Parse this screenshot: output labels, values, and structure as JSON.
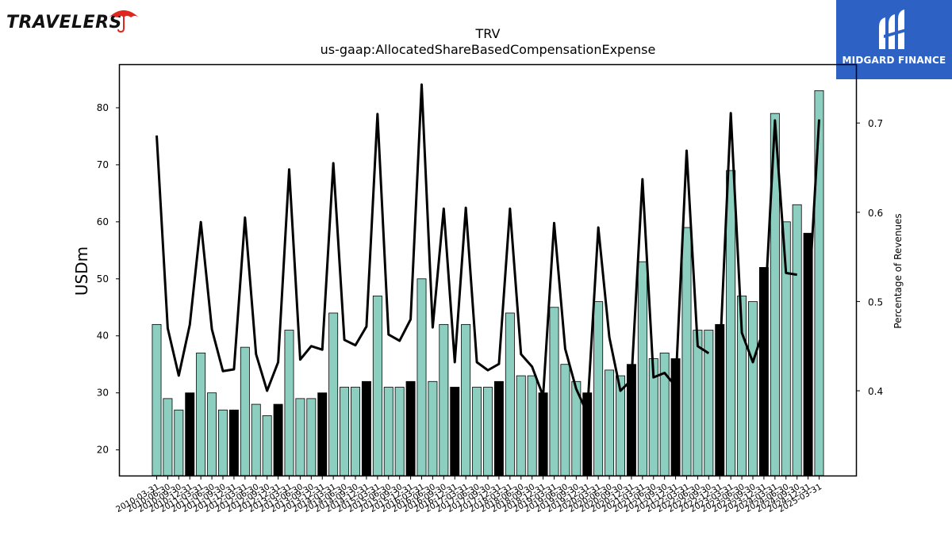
{
  "branding": {
    "company_logo_text": "TRAVELERS",
    "partner_name": "MIDGARD FINANCE",
    "colors": {
      "umbrella": "#e0261f",
      "badge": "#2d62c4"
    }
  },
  "chart_data": {
    "type": "bar",
    "title": "TRV",
    "subtitle": "us-gaap:AllocatedShareBasedCompensationExpense",
    "ylabel": "USDm",
    "y2label": "Percentage of Revenues",
    "ylim": [
      15.5,
      87.5
    ],
    "y2lim": [
      0.305,
      0.765
    ],
    "yticks": [
      20,
      30,
      40,
      50,
      60,
      70,
      80
    ],
    "y2ticks": [
      0.4,
      0.5,
      0.6,
      0.7
    ],
    "grid": false,
    "colors": {
      "bar": "#8ccfc0",
      "bar_q4": "#000000",
      "line": "#000000",
      "edge": "#000000"
    },
    "categories": [
      "2010-03-31",
      "2010-06-30",
      "2010-09-30",
      "2010-12-31",
      "2011-03-31",
      "2011-06-30",
      "2011-09-30",
      "2011-12-31",
      "2012-03-31",
      "2012-06-30",
      "2012-09-30",
      "2012-12-31",
      "2013-03-31",
      "2013-06-30",
      "2013-09-30",
      "2013-12-31",
      "2014-03-31",
      "2014-06-30",
      "2014-09-30",
      "2014-12-31",
      "2015-03-31",
      "2015-06-30",
      "2015-09-30",
      "2015-12-31",
      "2016-03-31",
      "2016-06-30",
      "2016-09-30",
      "2016-12-31",
      "2017-03-31",
      "2017-06-30",
      "2017-09-30",
      "2017-12-31",
      "2018-03-31",
      "2018-06-30",
      "2018-09-30",
      "2018-12-31",
      "2019-03-31",
      "2019-06-30",
      "2019-09-30",
      "2019-12-31",
      "2020-03-31",
      "2020-06-30",
      "2020-09-30",
      "2020-12-31",
      "2021-03-31",
      "2021-06-30",
      "2021-09-30",
      "2021-12-31",
      "2022-03-31",
      "2022-06-30",
      "2022-09-30",
      "2022-12-31",
      "2023-03-31",
      "2023-06-30",
      "2023-09-30",
      "2023-12-31",
      "2024-03-31",
      "2024-06-30",
      "2024-09-30",
      "2024-12-31",
      "2025-03-31"
    ],
    "series": [
      {
        "type": "bar",
        "values": [
          42,
          29,
          27,
          30,
          37,
          30,
          27,
          27,
          38,
          28,
          26,
          28,
          41,
          29,
          29,
          30,
          44,
          31,
          31,
          32,
          47,
          31,
          31,
          32,
          50,
          32,
          42,
          31,
          42,
          31,
          31,
          32,
          44,
          33,
          33,
          30,
          45,
          35,
          32,
          30,
          46,
          34,
          33,
          35,
          53,
          36,
          37,
          36,
          59,
          41,
          41,
          42,
          69,
          47,
          46,
          52,
          79,
          60,
          63,
          58,
          83
        ]
      },
      {
        "type": "line",
        "axis": "right",
        "values": [
          0.686,
          0.47,
          0.417,
          0.474,
          0.589,
          0.469,
          0.422,
          0.424,
          0.594,
          0.441,
          0.4,
          0.432,
          0.648,
          0.435,
          0.45,
          0.446,
          0.655,
          0.457,
          0.451,
          0.472,
          0.71,
          0.463,
          0.456,
          0.48,
          0.743,
          0.471,
          0.604,
          0.432,
          0.605,
          0.432,
          0.423,
          0.43,
          0.604,
          0.441,
          0.427,
          0.394,
          0.588,
          0.447,
          0.402,
          0.375,
          0.583,
          0.46,
          0.4,
          0.412,
          0.637,
          0.415,
          0.42,
          0.405,
          0.669,
          0.45,
          0.442,
          0.436,
          0.711,
          0.465,
          0.432,
          0.47,
          0.703,
          0.532,
          0.53,
          0.49,
          0.704
        ]
      }
    ],
    "q4_highlight": [
      3,
      7,
      11,
      15,
      19,
      23,
      27,
      31,
      35,
      39,
      43,
      47,
      51,
      55,
      59
    ],
    "line_gaps_after": [
      50,
      58
    ]
  }
}
